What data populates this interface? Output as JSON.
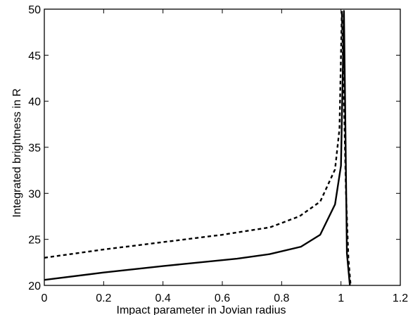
{
  "chart_data": {
    "type": "line",
    "title": "",
    "xlabel": "Impact parameter in Jovian radius",
    "ylabel": "Integrated brightness in R",
    "xlim": [
      0,
      1.2
    ],
    "ylim": [
      20,
      50
    ],
    "xticks": [
      0,
      0.2,
      0.4,
      0.6,
      0.8,
      1,
      1.2
    ],
    "xtick_labels": [
      "0",
      "0.2",
      "0.4",
      "0.6",
      "0.8",
      "1",
      "1.2"
    ],
    "yticks": [
      20,
      25,
      30,
      35,
      40,
      45,
      50
    ],
    "ytick_labels": [
      "20",
      "25",
      "30",
      "35",
      "40",
      "45",
      "50"
    ],
    "grid": false,
    "legend": "none",
    "series": [
      {
        "style": "solid",
        "color": "#000000",
        "x": [
          0,
          0.2,
          0.4,
          0.65,
          0.76,
          0.865,
          0.93,
          0.98,
          1.0,
          1.01,
          1.015,
          1.02,
          1.03
        ],
        "y": [
          20.6,
          21.4,
          22.1,
          22.9,
          23.4,
          24.2,
          25.5,
          28.8,
          33.0,
          49.8,
          37.0,
          23.5,
          20.0
        ]
      },
      {
        "style": "dashed",
        "color": "#000000",
        "x": [
          0,
          0.2,
          0.4,
          0.6,
          0.76,
          0.86,
          0.93,
          0.98,
          0.995,
          1.003,
          1.01,
          1.017,
          1.025,
          1.032
        ],
        "y": [
          23.0,
          23.9,
          24.7,
          25.5,
          26.3,
          27.5,
          29.1,
          32.6,
          37.0,
          49.8,
          40.0,
          30.0,
          23.0,
          20.2
        ]
      }
    ]
  }
}
